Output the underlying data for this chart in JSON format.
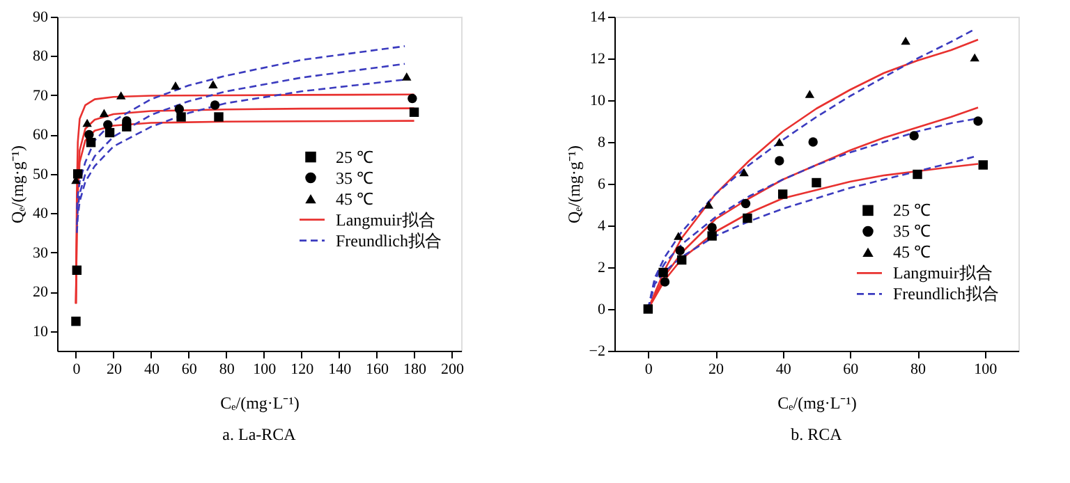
{
  "chart_data": [
    {
      "type": "scatter",
      "title": "a.  La-RCA",
      "xlabel": "Cₑ/(mg·L⁻¹)",
      "ylabel": "Qₑ/(mg·g⁻¹)",
      "xlim": [
        -10,
        205
      ],
      "ylim": [
        5,
        90
      ],
      "xticks": [
        0,
        20,
        40,
        60,
        80,
        100,
        120,
        140,
        160,
        180,
        200
      ],
      "yticks": [
        10,
        20,
        30,
        40,
        50,
        60,
        70,
        80,
        90
      ],
      "grid": false,
      "legend": "right",
      "series": [
        {
          "name": "25 ℃",
          "marker": "square",
          "color": "#000000",
          "x": [
            0,
            0.5,
            1,
            8,
            18,
            27,
            56,
            76,
            180
          ],
          "values": [
            12.5,
            25.5,
            50,
            58,
            60.5,
            62,
            64.5,
            64.5,
            65.7
          ]
        },
        {
          "name": "35 ℃",
          "marker": "circle",
          "color": "#000000",
          "x": [
            7,
            17,
            27,
            55,
            74,
            179
          ],
          "values": [
            60,
            62.5,
            63.5,
            66.5,
            67.5,
            69.2
          ]
        },
        {
          "name": "45 ℃",
          "marker": "triangle",
          "color": "#000000",
          "x": [
            0,
            6,
            15,
            24,
            53,
            73,
            176
          ],
          "values": [
            48.5,
            63,
            65.5,
            70,
            72.5,
            72.8,
            74.8
          ]
        },
        {
          "name": "Langmuir拟合",
          "type": "line",
          "line_style": "solid",
          "color": "#e8312f",
          "x": [
            0,
            0.5,
            1,
            2,
            5,
            10,
            20,
            40,
            80,
            120,
            180
          ],
          "values": [
            17,
            35,
            45,
            53,
            58.5,
            61,
            62.3,
            63,
            63.3,
            63.4,
            63.5
          ]
        },
        {
          "type": "line",
          "line_style": "solid",
          "color": "#e8312f",
          "x": [
            0,
            0.5,
            1,
            2,
            5,
            10,
            20,
            40,
            80,
            120,
            180
          ],
          "values": [
            17,
            37,
            48,
            56,
            61.5,
            63.8,
            65.2,
            66,
            66.4,
            66.6,
            66.7
          ]
        },
        {
          "type": "line",
          "line_style": "solid",
          "color": "#e8312f",
          "x": [
            0,
            0.5,
            1,
            2,
            5,
            10,
            20,
            40,
            80,
            120,
            180
          ],
          "values": [
            17,
            45,
            58,
            64,
            67.5,
            69,
            69.6,
            69.9,
            70,
            70.1,
            70.2
          ]
        },
        {
          "name": "Freundlich拟合",
          "type": "line",
          "line_style": "dashed",
          "color": "#3b3bbf",
          "x": [
            0.5,
            1,
            2,
            5,
            10,
            20,
            40,
            60,
            80,
            120,
            175
          ],
          "values": [
            35,
            39,
            43,
            48,
            52,
            57,
            62,
            65.5,
            68,
            71,
            74
          ]
        },
        {
          "type": "line",
          "line_style": "dashed",
          "color": "#3b3bbf",
          "x": [
            0.5,
            1,
            2,
            5,
            10,
            20,
            40,
            60,
            80,
            120,
            175
          ],
          "values": [
            37,
            41,
            45,
            50,
            54.5,
            59.5,
            65,
            68.5,
            71,
            74.5,
            78
          ]
        },
        {
          "type": "line",
          "line_style": "dashed",
          "color": "#3b3bbf",
          "x": [
            0.5,
            1,
            2,
            5,
            10,
            20,
            40,
            60,
            80,
            120,
            175
          ],
          "values": [
            41,
            44.5,
            48,
            53,
            58.5,
            63.5,
            69,
            72.5,
            75,
            79,
            82.5
          ]
        }
      ]
    },
    {
      "type": "scatter",
      "title": "b.  RCA",
      "xlabel": "Cₑ/(mg·L⁻¹)",
      "ylabel": "Qₑ/(mg·g⁻¹)",
      "xlim": [
        -10,
        110
      ],
      "ylim": [
        -2,
        14
      ],
      "xticks": [
        0,
        20,
        40,
        60,
        80,
        100
      ],
      "yticks": [
        -2,
        0,
        2,
        4,
        6,
        8,
        10,
        12,
        14
      ],
      "grid": false,
      "legend": "bottom right",
      "series": [
        {
          "name": "25 ℃",
          "marker": "square",
          "color": "#000000",
          "x": [
            0,
            4.5,
            10,
            19,
            29.5,
            40,
            50,
            80,
            99.5
          ],
          "values": [
            0,
            1.75,
            2.35,
            3.5,
            4.35,
            5.5,
            6.05,
            6.45,
            6.9
          ]
        },
        {
          "name": "35 ℃",
          "marker": "circle",
          "color": "#000000",
          "x": [
            5,
            9.5,
            19,
            29,
            39,
            49,
            79,
            98
          ],
          "values": [
            1.3,
            2.8,
            3.9,
            5.05,
            7.1,
            8,
            8.3,
            9
          ]
        },
        {
          "name": "45 ℃",
          "marker": "triangle",
          "color": "#000000",
          "x": [
            9,
            18,
            28.5,
            39,
            48,
            76.5,
            97
          ],
          "values": [
            3.5,
            5,
            6.55,
            8,
            10.3,
            12.85,
            12.05
          ]
        },
        {
          "name": "Langmuir拟合",
          "type": "line",
          "line_style": "solid",
          "color": "#e8312f",
          "x": [
            0,
            5,
            10,
            20,
            30,
            40,
            50,
            60,
            70,
            80,
            90,
            98
          ],
          "values": [
            0,
            1.4,
            2.4,
            3.7,
            4.6,
            5.3,
            5.7,
            6.1,
            6.4,
            6.6,
            6.8,
            6.95
          ]
        },
        {
          "type": "line",
          "line_style": "solid",
          "color": "#e8312f",
          "x": [
            0,
            5,
            10,
            20,
            30,
            40,
            50,
            60,
            70,
            80,
            90,
            98
          ],
          "values": [
            0,
            1.6,
            2.7,
            4.3,
            5.3,
            6.2,
            6.9,
            7.6,
            8.2,
            8.7,
            9.2,
            9.65
          ]
        },
        {
          "type": "line",
          "line_style": "solid",
          "color": "#e8312f",
          "x": [
            0,
            5,
            10,
            20,
            30,
            40,
            50,
            60,
            70,
            80,
            90,
            98
          ],
          "values": [
            0,
            1.9,
            3.4,
            5.5,
            7.1,
            8.5,
            9.6,
            10.5,
            11.3,
            11.9,
            12.4,
            12.9
          ]
        },
        {
          "name": "Freundlich拟合",
          "type": "line",
          "line_style": "dashed",
          "color": "#3b3bbf",
          "x": [
            0,
            2,
            5,
            10,
            20,
            30,
            40,
            50,
            60,
            70,
            80,
            90,
            97
          ],
          "values": [
            0,
            1.2,
            1.8,
            2.5,
            3.5,
            4.2,
            4.8,
            5.3,
            5.8,
            6.2,
            6.6,
            7.0,
            7.3
          ]
        },
        {
          "type": "line",
          "line_style": "dashed",
          "color": "#3b3bbf",
          "x": [
            0,
            2,
            5,
            10,
            20,
            30,
            40,
            50,
            60,
            70,
            80,
            90,
            97
          ],
          "values": [
            0,
            1.4,
            2.2,
            3.1,
            4.4,
            5.4,
            6.2,
            6.9,
            7.5,
            8,
            8.5,
            8.9,
            9.1
          ]
        },
        {
          "type": "line",
          "line_style": "dashed",
          "color": "#3b3bbf",
          "x": [
            0,
            2,
            5,
            10,
            20,
            30,
            40,
            50,
            60,
            70,
            80,
            90,
            97
          ],
          "values": [
            0,
            1.5,
            2.5,
            3.7,
            5.5,
            6.9,
            8.1,
            9.2,
            10.2,
            11.1,
            12,
            12.8,
            13.4
          ]
        }
      ]
    }
  ]
}
